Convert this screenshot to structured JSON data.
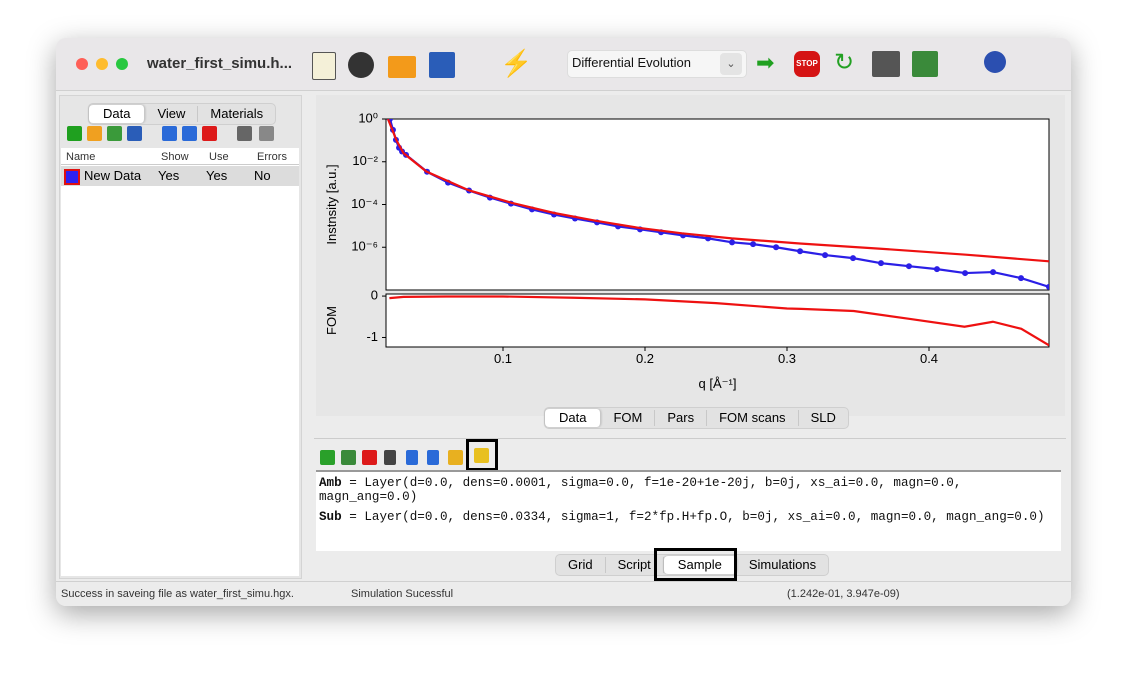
{
  "window": {
    "title": "water_first_simu.h...",
    "optimizer": "Differential Evolution"
  },
  "left_panel": {
    "tabs": [
      "Data",
      "View",
      "Materials"
    ],
    "table": {
      "columns": [
        "Name",
        "Show",
        "Use",
        "Errors"
      ],
      "rows": [
        [
          "New Data",
          "Yes",
          "Yes",
          "No"
        ]
      ]
    }
  },
  "chart_data": [
    {
      "type": "line",
      "ylabel": "Instnsity [a.u.]",
      "xlim": [
        0.0176,
        0.4845
      ],
      "ylim": [
        1e-08,
        1
      ],
      "ylog": true,
      "yticks": [
        {
          "value": 1,
          "label": "10⁰"
        },
        {
          "value": 0.01,
          "label": "10⁻²"
        },
        {
          "value": 0.0001,
          "label": "10⁻⁴"
        },
        {
          "value": 1e-06,
          "label": "10⁻⁶"
        }
      ],
      "series": [
        {
          "color": "#2b1fe6",
          "marker": "circle",
          "x": [
            0.0204,
            0.0225,
            0.0246,
            0.0268,
            0.0289,
            0.0317,
            0.0465,
            0.0613,
            0.0761,
            0.0908,
            0.1056,
            0.1204,
            0.1359,
            0.1507,
            0.1662,
            0.181,
            0.1965,
            0.2113,
            0.2268,
            0.2444,
            0.2613,
            0.2761,
            0.2923,
            0.3092,
            0.3268,
            0.3465,
            0.3662,
            0.3859,
            0.4056,
            0.4254,
            0.4451,
            0.4648,
            0.4845
          ],
          "values": [
            1.0,
            0.31,
            0.105,
            0.045,
            0.03,
            0.021,
            0.0034,
            0.00105,
            0.00045,
            0.00021,
            0.00011,
            5.9e-05,
            3.4e-05,
            2.2e-05,
            1.45e-05,
            9.5e-06,
            6.9e-06,
            5e-06,
            3.6e-06,
            2.6e-06,
            1.7e-06,
            1.4e-06,
            1e-06,
            6.5e-07,
            4.3e-07,
            3.1e-07,
            1.8e-07,
            1.3e-07,
            9.5e-08,
            6.2e-08,
            6.9e-08,
            3.6e-08,
            1.4e-08
          ]
        },
        {
          "color": "#ee1111",
          "x": [
            0.019,
            0.025,
            0.03,
            0.046,
            0.076,
            0.106,
            0.136,
            0.166,
            0.196,
            0.226,
            0.261,
            0.309,
            0.366,
            0.426,
            0.4845
          ],
          "values": [
            1.0,
            0.1,
            0.025,
            0.0035,
            0.00046,
            0.00012,
            4e-05,
            1.7e-05,
            8e-06,
            4.5e-06,
            2.6e-06,
            1.5e-06,
            8.5e-07,
            4.5e-07,
            2.2e-07
          ]
        }
      ]
    },
    {
      "type": "line",
      "ylabel": "FOM",
      "xlabel": "q [Å⁻¹]",
      "xlim": [
        0.0176,
        0.4845
      ],
      "ylim": [
        -1.23,
        0.05
      ],
      "xticks": [
        0.1,
        0.2,
        0.3,
        0.4
      ],
      "yticks": [
        0,
        -1
      ],
      "series": [
        {
          "color": "#ee1111",
          "x": [
            0.02,
            0.03,
            0.06,
            0.1,
            0.15,
            0.2,
            0.25,
            0.3,
            0.31,
            0.347,
            0.386,
            0.425,
            0.445,
            0.465,
            0.4845
          ],
          "values": [
            -0.05,
            -0.02,
            -0.01,
            -0.01,
            -0.04,
            -0.08,
            -0.17,
            -0.3,
            -0.31,
            -0.36,
            -0.55,
            -0.74,
            -0.62,
            -0.79,
            -1.19
          ]
        }
      ]
    }
  ],
  "plot_tabs": [
    "Data",
    "FOM",
    "Pars",
    "FOM scans",
    "SLD"
  ],
  "sample": {
    "layers": [
      {
        "name": "Amb",
        "definition": "= Layer(d=0.0, dens=0.0001, sigma=0.0, f=1e-20+1e-20j, b=0j, xs_ai=0.0, magn=0.0, magn_ang=0.0)"
      },
      {
        "name": "Sub",
        "definition": "= Layer(d=0.0, dens=0.0334, sigma=1, f=2*fp.H+fp.O, b=0j, xs_ai=0.0, magn=0.0, magn_ang=0.0)"
      }
    ]
  },
  "bottom_tabs": [
    "Grid",
    "Script",
    "Sample",
    "Simulations"
  ],
  "status_bar": [
    "Success in saveing file as water_first_simu.hgx.",
    "Simulation Sucessful",
    "(1.242e-01, 3.947e-09)"
  ]
}
